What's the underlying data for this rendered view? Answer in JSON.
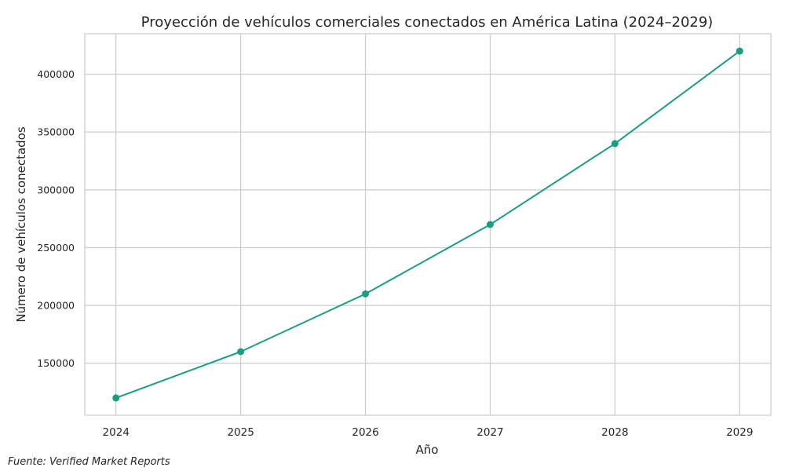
{
  "chart_data": {
    "type": "line",
    "title": "Proyección de vehículos comerciales conectados en América Latina (2024–2029)",
    "xlabel": "Año",
    "ylabel": "Número de vehículos conectados",
    "x": [
      2024,
      2025,
      2026,
      2027,
      2028,
      2029
    ],
    "series": [
      {
        "values": [
          120000,
          160000,
          210000,
          270000,
          340000,
          420000
        ],
        "color": "#1a9e82",
        "marker": "circle"
      }
    ],
    "x_ticks": [
      "2024",
      "2025",
      "2026",
      "2027",
      "2028",
      "2029"
    ],
    "y_ticks": [
      "150000",
      "200000",
      "250000",
      "300000",
      "350000",
      "400000"
    ],
    "ylim": [
      105000,
      435000
    ],
    "grid": true,
    "legend": "none"
  },
  "footer": {
    "source": "Fuente: Verified Market Reports"
  },
  "colors": {
    "line": "#1a9e82",
    "grid": "#cccccc",
    "axes_edge": "#cccccc",
    "text": "#262626"
  }
}
